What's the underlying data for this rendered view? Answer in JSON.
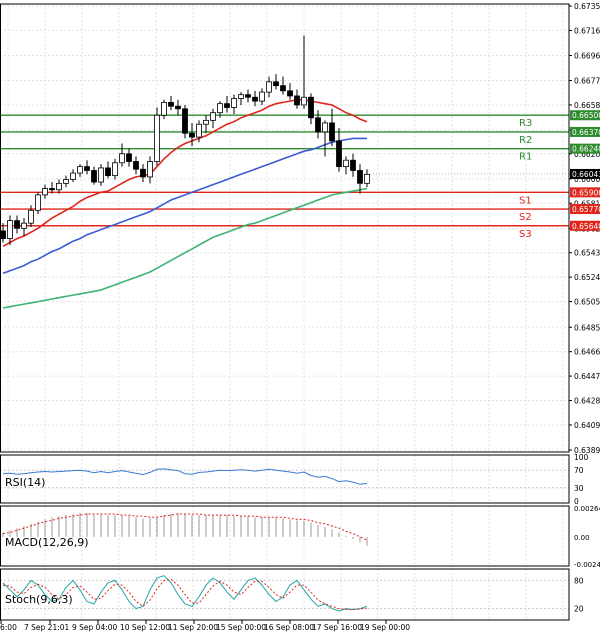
{
  "chart_data": {
    "type": "candlestick",
    "price_axis": {
      "min": 0.63895,
      "max": 0.6735,
      "ticks": [
        "0.67350",
        "0.67160",
        "0.66965",
        "0.66770",
        "0.66580",
        "0.66385",
        "0.66200",
        "0.66005",
        "0.65815",
        "0.65620",
        "0.65430",
        "0.65240",
        "0.65050",
        "0.64850",
        "0.64660",
        "0.64470",
        "0.64280",
        "0.64090",
        "0.63895"
      ]
    },
    "time_labels": [
      "6:00",
      "7 Sep 21:01",
      "9 Sep 04:00",
      "10 Sep 12:00",
      "11 Sep 20:00",
      "15 Sep 00:00",
      "16 Sep 08:00",
      "17 Sep 16:00",
      "19 Sep 00:00"
    ],
    "current_price": {
      "label": "0.66043",
      "value": 0.66043
    },
    "levels": [
      {
        "name": "R3",
        "label": "0.66500",
        "value": 0.665,
        "color": "#2e8b2e"
      },
      {
        "name": "R2",
        "label": "0.66370",
        "value": 0.6637,
        "color": "#2e8b2e"
      },
      {
        "name": "R1",
        "label": "0.66240",
        "value": 0.6624,
        "color": "#2e8b2e"
      },
      {
        "name": "S1",
        "label": "0.65900",
        "value": 0.659,
        "color": "#e0251b"
      },
      {
        "name": "S2",
        "label": "0.65770",
        "value": 0.6577,
        "color": "#e0251b"
      },
      {
        "name": "S3",
        "label": "0.65640",
        "value": 0.6564,
        "color": "#e0251b"
      }
    ],
    "candles": [
      [
        0.656,
        0.6566,
        0.6551,
        0.6554
      ],
      [
        0.6554,
        0.6572,
        0.6549,
        0.6568
      ],
      [
        0.6568,
        0.6572,
        0.6558,
        0.6562
      ],
      [
        0.6562,
        0.657,
        0.6556,
        0.6566
      ],
      [
        0.6566,
        0.658,
        0.6563,
        0.6576
      ],
      [
        0.6576,
        0.659,
        0.6573,
        0.6588
      ],
      [
        0.6588,
        0.6596,
        0.6585,
        0.6593
      ],
      [
        0.6593,
        0.6598,
        0.6589,
        0.6592
      ],
      [
        0.6592,
        0.66,
        0.6589,
        0.6597
      ],
      [
        0.6597,
        0.6603,
        0.6594,
        0.66
      ],
      [
        0.66,
        0.6608,
        0.6598,
        0.6605
      ],
      [
        0.6605,
        0.6612,
        0.6602,
        0.661
      ],
      [
        0.661,
        0.6615,
        0.6604,
        0.6607
      ],
      [
        0.6607,
        0.661,
        0.6596,
        0.6598
      ],
      [
        0.6598,
        0.6612,
        0.6595,
        0.6609
      ],
      [
        0.6609,
        0.6614,
        0.6601,
        0.6603
      ],
      [
        0.6603,
        0.6616,
        0.66,
        0.6613
      ],
      [
        0.6613,
        0.6628,
        0.661,
        0.662
      ],
      [
        0.662,
        0.6624,
        0.661,
        0.6614
      ],
      [
        0.6614,
        0.6618,
        0.6604,
        0.6608
      ],
      [
        0.6608,
        0.6612,
        0.6598,
        0.6602
      ],
      [
        0.6602,
        0.6618,
        0.6597,
        0.6614
      ],
      [
        0.6614,
        0.6656,
        0.6611,
        0.665
      ],
      [
        0.665,
        0.6662,
        0.6647,
        0.666
      ],
      [
        0.666,
        0.6665,
        0.6654,
        0.6657
      ],
      [
        0.6657,
        0.6662,
        0.665,
        0.6655
      ],
      [
        0.6655,
        0.6658,
        0.6632,
        0.6636
      ],
      [
        0.6636,
        0.6644,
        0.6626,
        0.6633
      ],
      [
        0.6633,
        0.6646,
        0.6629,
        0.6643
      ],
      [
        0.6643,
        0.665,
        0.6636,
        0.6646
      ],
      [
        0.6646,
        0.6655,
        0.664,
        0.6652
      ],
      [
        0.6652,
        0.6661,
        0.6648,
        0.6659
      ],
      [
        0.6659,
        0.6665,
        0.6652,
        0.6656
      ],
      [
        0.6656,
        0.6666,
        0.6651,
        0.6663
      ],
      [
        0.6663,
        0.6668,
        0.6658,
        0.6666
      ],
      [
        0.6666,
        0.667,
        0.666,
        0.6664
      ],
      [
        0.6664,
        0.6669,
        0.6657,
        0.6661
      ],
      [
        0.6661,
        0.6671,
        0.6658,
        0.6668
      ],
      [
        0.6668,
        0.668,
        0.6664,
        0.6676
      ],
      [
        0.6676,
        0.6682,
        0.667,
        0.6673
      ],
      [
        0.6673,
        0.668,
        0.6666,
        0.6669
      ],
      [
        0.6669,
        0.6675,
        0.6662,
        0.6665
      ],
      [
        0.6665,
        0.667,
        0.6655,
        0.6658
      ],
      [
        0.6658,
        0.6712,
        0.6655,
        0.6664
      ],
      [
        0.6664,
        0.6667,
        0.6643,
        0.6648
      ],
      [
        0.6648,
        0.6654,
        0.6632,
        0.6637
      ],
      [
        0.6637,
        0.6646,
        0.6618,
        0.6644
      ],
      [
        0.6644,
        0.6655,
        0.6626,
        0.663
      ],
      [
        0.663,
        0.664,
        0.6606,
        0.661
      ],
      [
        0.661,
        0.6618,
        0.6604,
        0.6615
      ],
      [
        0.6615,
        0.662,
        0.6602,
        0.6607
      ],
      [
        0.6607,
        0.6612,
        0.6589,
        0.6597
      ],
      [
        0.6597,
        0.6608,
        0.6594,
        0.6604
      ]
    ],
    "ma_fast": [
      0.6548,
      0.6551,
      0.6554,
      0.6556,
      0.6559,
      0.6562,
      0.6566,
      0.657,
      0.6573,
      0.6576,
      0.6579,
      0.6583,
      0.6586,
      0.6588,
      0.659,
      0.6591,
      0.6594,
      0.6597,
      0.66,
      0.6602,
      0.6603,
      0.6604,
      0.661,
      0.6616,
      0.6621,
      0.6625,
      0.6628,
      0.663,
      0.6632,
      0.6634,
      0.6637,
      0.664,
      0.6643,
      0.6645,
      0.6648,
      0.665,
      0.6652,
      0.6654,
      0.6657,
      0.6659,
      0.666,
      0.6661,
      0.6662,
      0.6662,
      0.6661,
      0.666,
      0.6659,
      0.6658,
      0.6655,
      0.6652,
      0.665,
      0.6647,
      0.6645
    ],
    "ma_mid": [
      0.6527,
      0.6529,
      0.6531,
      0.6533,
      0.6536,
      0.6538,
      0.6541,
      0.6544,
      0.6546,
      0.6549,
      0.6552,
      0.6554,
      0.6557,
      0.6559,
      0.6561,
      0.6563,
      0.6565,
      0.6567,
      0.6569,
      0.6571,
      0.6573,
      0.6575,
      0.6578,
      0.6581,
      0.6584,
      0.6586,
      0.6588,
      0.659,
      0.6592,
      0.6594,
      0.6596,
      0.6598,
      0.66,
      0.6602,
      0.6604,
      0.6606,
      0.6608,
      0.661,
      0.6612,
      0.6614,
      0.6616,
      0.6618,
      0.662,
      0.6622,
      0.6623,
      0.6625,
      0.6627,
      0.6629,
      0.663,
      0.6631,
      0.6632,
      0.6632,
      0.6632
    ],
    "ma_slow": [
      0.65,
      0.6501,
      0.6502,
      0.6503,
      0.6504,
      0.6505,
      0.6506,
      0.6507,
      0.6508,
      0.6509,
      0.651,
      0.6511,
      0.6512,
      0.6513,
      0.6514,
      0.6516,
      0.6518,
      0.652,
      0.6522,
      0.6524,
      0.6526,
      0.6528,
      0.6531,
      0.6534,
      0.6537,
      0.654,
      0.6543,
      0.6546,
      0.6549,
      0.6552,
      0.6555,
      0.6557,
      0.6559,
      0.6561,
      0.6563,
      0.6565,
      0.6566,
      0.6568,
      0.657,
      0.6572,
      0.6574,
      0.6576,
      0.6578,
      0.658,
      0.6582,
      0.6584,
      0.6586,
      0.6588,
      0.6589,
      0.659,
      0.6591,
      0.6592,
      0.6593
    ],
    "rsi": {
      "label": "RSI(14)",
      "ticks": [
        "100",
        "70",
        "30",
        "0"
      ],
      "values": [
        62,
        63,
        61,
        62,
        64,
        66,
        67,
        66,
        67,
        68,
        69,
        70,
        68,
        64,
        67,
        64,
        67,
        69,
        66,
        63,
        60,
        65,
        72,
        73,
        71,
        69,
        62,
        61,
        65,
        66,
        68,
        70,
        69,
        70,
        71,
        70,
        68,
        70,
        72,
        70,
        68,
        66,
        63,
        66,
        58,
        54,
        56,
        51,
        44,
        46,
        43,
        38,
        40
      ]
    },
    "macd": {
      "label": "MACD(12,26,9)",
      "ticks": [
        "0.002647",
        "0.00",
        "-0.00249"
      ],
      "hist": [
        0.0004,
        0.0006,
        0.0008,
        0.001,
        0.0012,
        0.0014,
        0.0016,
        0.0018,
        0.0019,
        0.002,
        0.0021,
        0.0022,
        0.0022,
        0.0021,
        0.0021,
        0.002,
        0.002,
        0.002,
        0.0019,
        0.0018,
        0.0017,
        0.0017,
        0.0018,
        0.002,
        0.0021,
        0.0022,
        0.0021,
        0.002,
        0.002,
        0.002,
        0.002,
        0.002,
        0.002,
        0.0019,
        0.0019,
        0.0019,
        0.0018,
        0.0018,
        0.0018,
        0.0018,
        0.0017,
        0.0016,
        0.0015,
        0.0015,
        0.0013,
        0.0011,
        0.0009,
        0.0007,
        0.0004,
        0.0001,
        -0.0002,
        -0.0005,
        -0.0008
      ],
      "signal": [
        0.0003,
        0.0004,
        0.0006,
        0.0008,
        0.001,
        0.0012,
        0.0014,
        0.0015,
        0.0017,
        0.0018,
        0.0019,
        0.002,
        0.0021,
        0.0021,
        0.0021,
        0.0021,
        0.0021,
        0.002,
        0.002,
        0.0019,
        0.0019,
        0.0018,
        0.0018,
        0.0019,
        0.002,
        0.0021,
        0.0021,
        0.0021,
        0.0021,
        0.002,
        0.002,
        0.002,
        0.002,
        0.002,
        0.0019,
        0.0019,
        0.0019,
        0.0018,
        0.0018,
        0.0018,
        0.0018,
        0.0017,
        0.0016,
        0.0016,
        0.0015,
        0.0013,
        0.0012,
        0.001,
        0.0008,
        0.0005,
        0.0003,
        0.0,
        -0.0003
      ]
    },
    "stoch": {
      "label": "Stoch(9,6,3)",
      "ticks": [
        "80",
        "20"
      ],
      "k": [
        75,
        60,
        45,
        60,
        80,
        70,
        50,
        35,
        40,
        65,
        80,
        60,
        35,
        30,
        55,
        75,
        80,
        60,
        35,
        20,
        25,
        60,
        85,
        90,
        75,
        50,
        30,
        25,
        45,
        70,
        85,
        75,
        55,
        40,
        60,
        80,
        85,
        70,
        50,
        35,
        45,
        70,
        80,
        60,
        40,
        25,
        30,
        20,
        15,
        20,
        18,
        20,
        25
      ],
      "d": [
        70,
        68,
        55,
        52,
        65,
        72,
        65,
        50,
        40,
        50,
        65,
        68,
        55,
        40,
        42,
        58,
        72,
        70,
        55,
        35,
        25,
        38,
        62,
        80,
        82,
        70,
        50,
        32,
        32,
        50,
        68,
        78,
        70,
        55,
        50,
        65,
        78,
        78,
        65,
        50,
        42,
        55,
        70,
        70,
        55,
        38,
        30,
        25,
        20,
        18,
        18,
        19,
        21
      ]
    }
  }
}
